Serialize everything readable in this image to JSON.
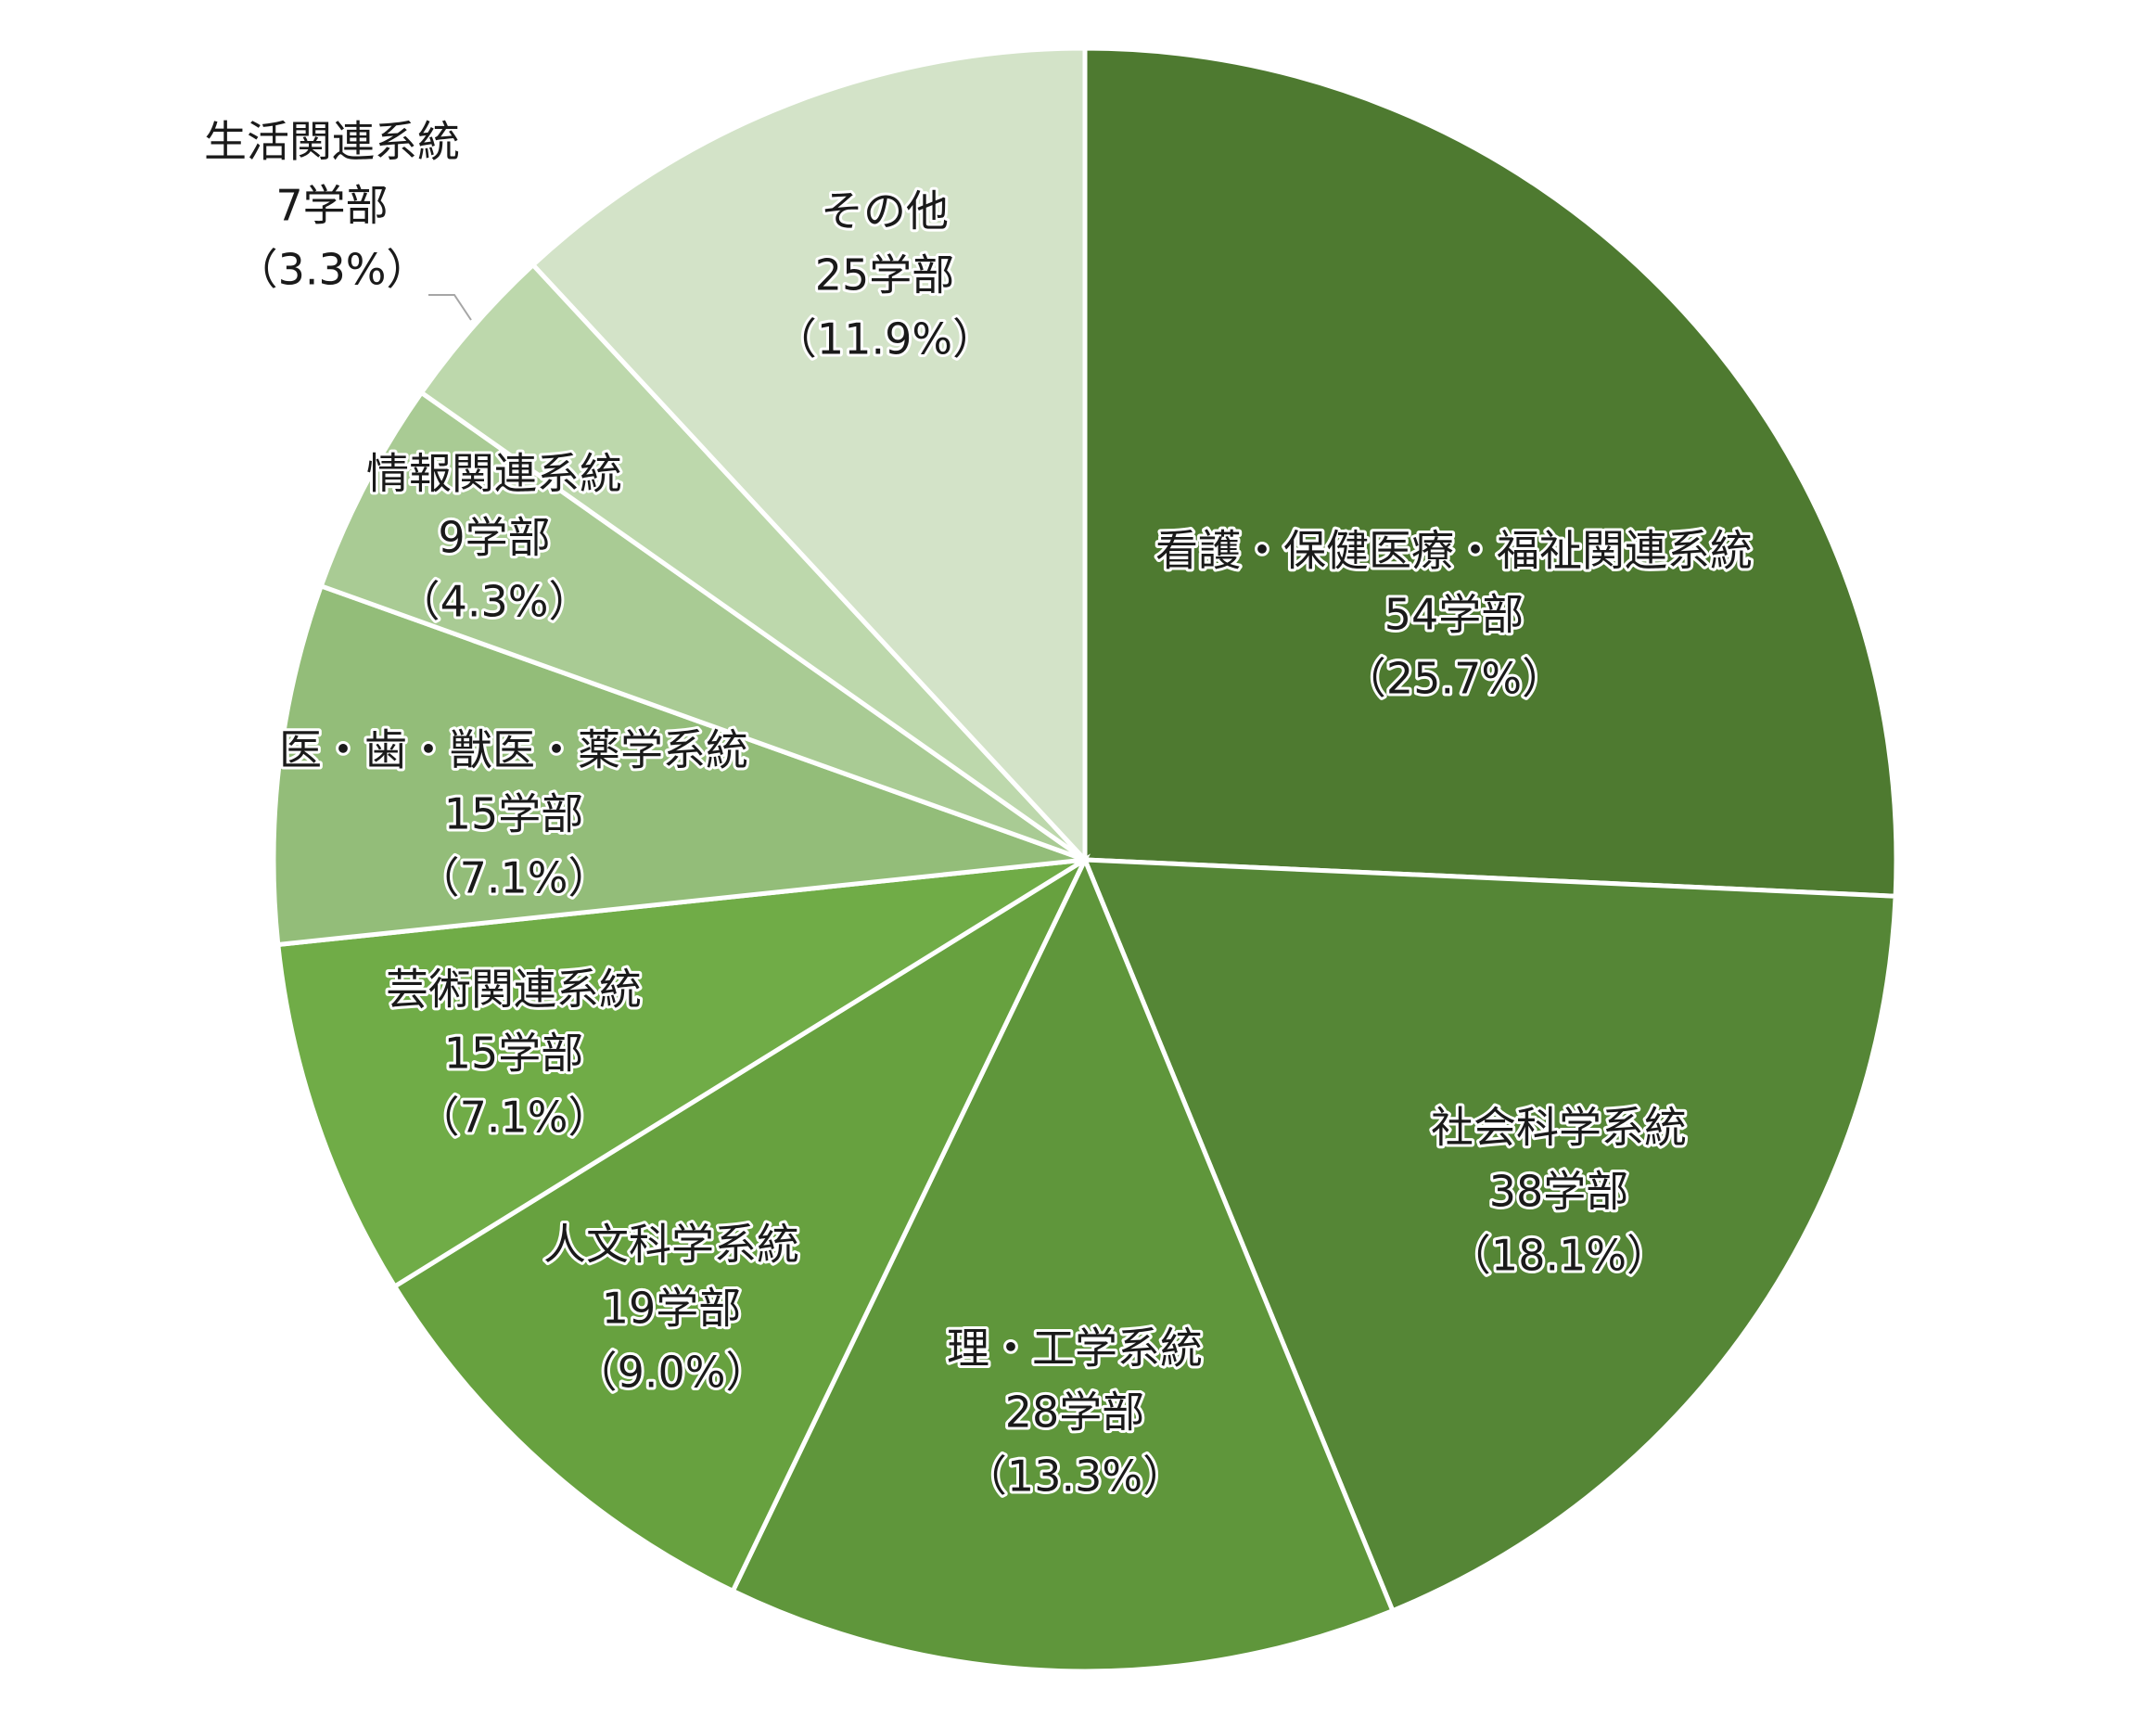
{
  "chart_data": {
    "type": "pie",
    "categories": [
      "看護・保健医療・福祉関連系統",
      "社会科学系統",
      "理・工学系統",
      "人文科学系統",
      "芸術関連系統",
      "医・歯・獣医・薬学系統",
      "情報関連系統",
      "生活関連系統",
      "その他"
    ],
    "values": [
      54,
      38,
      28,
      19,
      15,
      15,
      9,
      7,
      25
    ],
    "value_labels": [
      "54学部",
      "38学部",
      "28学部",
      "19学部",
      "15学部",
      "15学部",
      "9学部",
      "7学部",
      "25学部"
    ],
    "percent_labels": [
      "（25.7%）",
      "（18.1%）",
      "（13.3%）",
      "（9.0%）",
      "（7.1%）",
      "（7.1%）",
      "（4.3%）",
      "（3.3%）",
      "（11.9%）"
    ],
    "colors": [
      "#4e7a30",
      "#558636",
      "#5f963b",
      "#67a13f",
      "#70ac47",
      "#93bd79",
      "#a9cb94",
      "#bdd8ac",
      "#d3e3c8"
    ]
  }
}
